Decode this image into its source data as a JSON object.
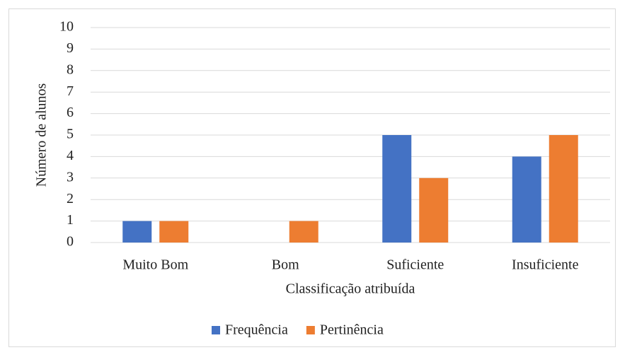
{
  "chart_data": {
    "type": "bar",
    "categories": [
      "Muito Bom",
      "Bom",
      "Suficiente",
      "Insuficiente"
    ],
    "series": [
      {
        "name": "Frequência",
        "color": "#4472c4",
        "values": [
          1,
          0,
          5,
          4
        ]
      },
      {
        "name": "Pertinência",
        "color": "#ed7d31",
        "values": [
          1,
          1,
          3,
          5
        ]
      }
    ],
    "x_label": "Classificação atribuída",
    "y_label": "Número de alunos",
    "ylim": [
      0,
      10
    ],
    "yticks": [
      0,
      1,
      2,
      3,
      4,
      5,
      6,
      7,
      8,
      9,
      10
    ],
    "grid": true,
    "legend": "bottom"
  }
}
